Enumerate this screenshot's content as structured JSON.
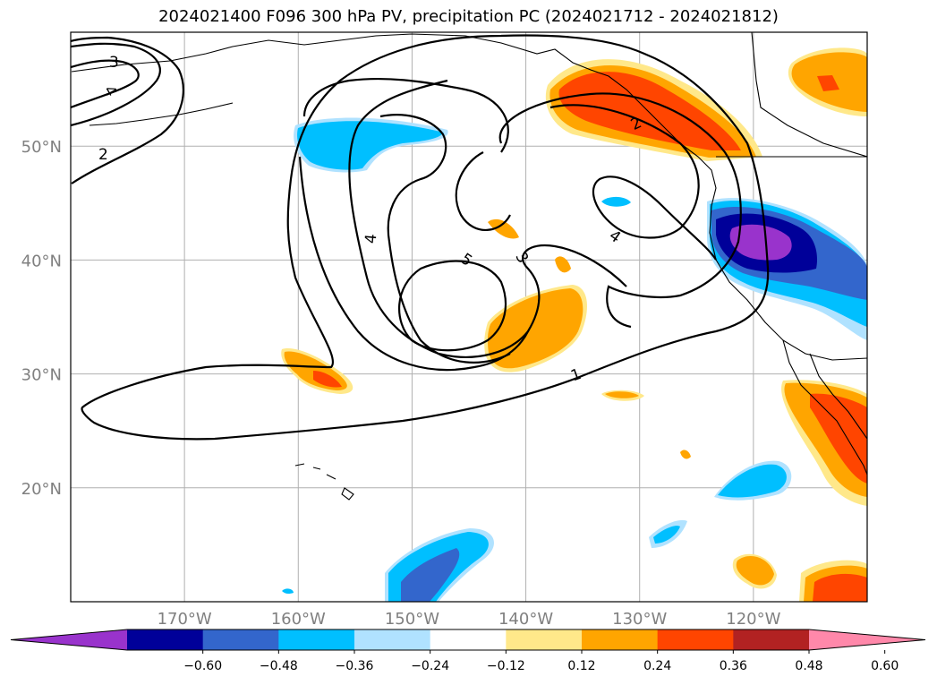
{
  "title": "2024021400 F096 300 hPa PV, precipitation PC (2024021712 - 2024021812)",
  "map": {
    "lon_ticks": [
      "170°W",
      "160°W",
      "150°W",
      "140°W",
      "130°W",
      "120°W"
    ],
    "lat_ticks": [
      "50°N",
      "40°N",
      "30°N",
      "20°N"
    ],
    "lon_range": [
      -180,
      -110
    ],
    "lat_range": [
      10,
      60
    ],
    "grid": true,
    "contour_labels": [
      "3",
      "4",
      "2",
      "2",
      "4",
      "5",
      "3",
      "4",
      "1"
    ]
  },
  "colorbar": {
    "ticks": [
      "−0.60",
      "−0.48",
      "−0.36",
      "−0.24",
      "−0.12",
      "0.12",
      "0.24",
      "0.36",
      "0.48",
      "0.60"
    ],
    "colors": [
      "#9933cc",
      "#000099",
      "#3366cc",
      "#00bfff",
      "#b0e2ff",
      "#ffffff",
      "#ffe88a",
      "#ffa500",
      "#ff4500",
      "#b22222",
      "#ff88aa"
    ],
    "extend": "both"
  }
}
